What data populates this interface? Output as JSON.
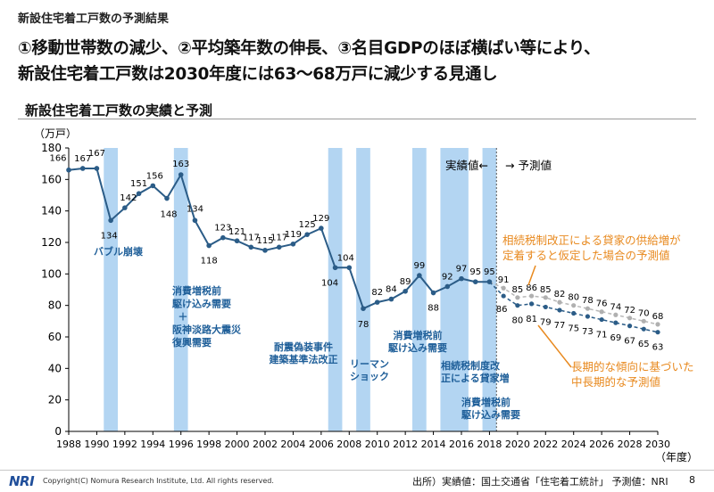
{
  "header": {
    "page_label": "新設住宅着工戸数の予測結果",
    "headline_line1": "①移動世帯数の減少、②平均築年数の伸長、③名目GDPのほぼ横ばい等により、",
    "headline_line2": "新設住宅着工戸数は2030年度には63～68万戸に減少する見通し"
  },
  "footer": {
    "logo": "NRI",
    "copyright": "Copyright(C) Nomura Research Institute, Ltd. All rights reserved.",
    "source": "出所）実績値：国土交通省「住宅着工統計」 予測値：NRI",
    "page_number": "8"
  },
  "colors": {
    "actual_line": "#2b5c87",
    "forecast_line": "#b8b8b8",
    "highlight_band": "#b3d5f2",
    "event_text": "#1f5f99",
    "annotation_orange": "#e8891e",
    "axis_text": "#000000"
  },
  "chart_data": {
    "type": "line",
    "title": "新設住宅着工戸数の実績と予測",
    "ylabel": "（万戸）",
    "xlabel": "（年度）",
    "ylim": [
      0,
      180
    ],
    "xlim": [
      1988,
      2030
    ],
    "y_ticks": [
      0,
      20,
      40,
      60,
      80,
      100,
      120,
      140,
      160,
      180
    ],
    "x_ticks": [
      1988,
      1990,
      1992,
      1994,
      1996,
      1998,
      2000,
      2002,
      2004,
      2006,
      2008,
      2010,
      2012,
      2014,
      2016,
      2018,
      2020,
      2022,
      2024,
      2026,
      2028,
      2030
    ],
    "grid": false,
    "series": [
      {
        "role": "actual",
        "x": [
          1988,
          1989,
          1990,
          1991,
          1992,
          1993,
          1994,
          1995,
          1996,
          1997,
          1998,
          1999,
          2000,
          2001,
          2002,
          2003,
          2004,
          2005,
          2006,
          2007,
          2008,
          2009,
          2010,
          2011,
          2012,
          2013,
          2014,
          2015,
          2016,
          2017,
          2018
        ],
        "values": [
          166,
          167,
          167,
          134,
          142,
          151,
          156,
          148,
          163,
          134,
          118,
          123,
          121,
          117,
          115,
          117,
          119,
          125,
          129,
          104,
          104,
          78,
          82,
          84,
          89,
          99,
          88,
          92,
          97,
          95,
          95
        ]
      },
      {
        "role": "forecast_upper",
        "x": [
          2018,
          2019,
          2020,
          2021,
          2022,
          2023,
          2024,
          2025,
          2026,
          2027,
          2028,
          2029,
          2030
        ],
        "values": [
          95,
          91,
          85,
          86,
          85,
          82,
          80,
          78,
          76,
          74,
          72,
          70,
          68
        ]
      },
      {
        "role": "forecast_lower",
        "x": [
          2018,
          2019,
          2020,
          2021,
          2022,
          2023,
          2024,
          2025,
          2026,
          2027,
          2028,
          2029,
          2030
        ],
        "values": [
          95,
          86,
          80,
          81,
          79,
          77,
          75,
          73,
          71,
          69,
          67,
          65,
          63
        ]
      }
    ],
    "highlight_periods": [
      {
        "from": 1990.5,
        "to": 1991.5
      },
      {
        "from": 1995.5,
        "to": 1996.5
      },
      {
        "from": 2006.5,
        "to": 2007.5
      },
      {
        "from": 2008.5,
        "to": 2009.5
      },
      {
        "from": 2012.5,
        "to": 2013.5
      },
      {
        "from": 2014.5,
        "to": 2016.5
      },
      {
        "from": 2017.5,
        "to": 2018.5
      }
    ],
    "event_labels": [
      {
        "lines": [
          "バブル崩壊"
        ]
      },
      {
        "lines": [
          "消費増税前",
          "駆け込み需要",
          "＋",
          "阪神淡路大震災",
          "復興需要"
        ]
      },
      {
        "lines": [
          "耐震偽装事件",
          "建築基準法改正"
        ]
      },
      {
        "lines": [
          "リーマン",
          "ショック"
        ]
      },
      {
        "lines": [
          "消費増税前",
          "駆け込み需要"
        ]
      },
      {
        "lines": [
          "相続税制度改",
          "正による貸家増"
        ]
      },
      {
        "lines": [
          "消費増税前",
          "駆け込み需要"
        ]
      }
    ],
    "annotations": {
      "actual_label": "実績値←",
      "forecast_label": "→ 予測値",
      "upper_note": [
        "相続税制改正による貸家の供給増が",
        "定着すると仮定した場合の予測値"
      ],
      "lower_note": [
        "長期的な傾向に基づいた",
        "中長期的な予測値"
      ]
    }
  }
}
